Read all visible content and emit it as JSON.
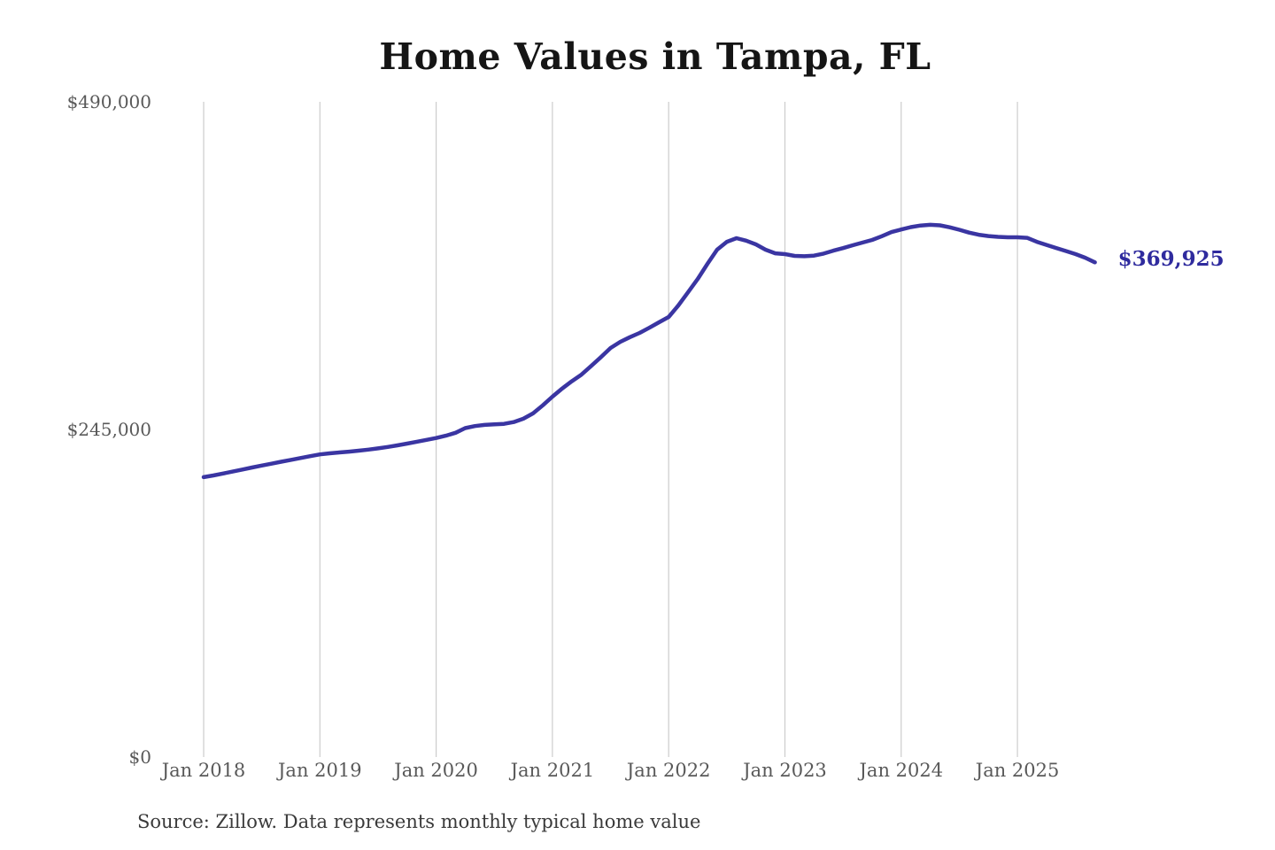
{
  "chart_data": {
    "type": "line",
    "title": "Home Values in Tampa, FL",
    "source": "Source: Zillow. Data represents monthly typical home value",
    "end_label": "$369,925",
    "latest_value": 369925,
    "x_tick_labels": [
      "Jan 2018",
      "Jan 2019",
      "Jan 2020",
      "Jan 2021",
      "Jan 2022",
      "Jan 2023",
      "Jan 2024",
      "Jan 2025"
    ],
    "y_ticks": [
      {
        "value": 0,
        "label": "$0"
      },
      {
        "value": 245000,
        "label": "$245,000"
      },
      {
        "value": 490000,
        "label": "$490,000"
      }
    ],
    "ylim": [
      0,
      490000
    ],
    "grid": "vertical-only",
    "legend": "none",
    "series": [
      {
        "name": "Monthly typical home value",
        "x_start": "Jan 2018",
        "x_interval": "month",
        "values": [
          209300,
          210600,
          212000,
          213500,
          215000,
          216500,
          218000,
          219400,
          220800,
          222200,
          223600,
          225000,
          226300,
          227100,
          227800,
          228400,
          229100,
          229900,
          230800,
          231900,
          233100,
          234400,
          235800,
          237200,
          238600,
          240300,
          242500,
          246000,
          247500,
          248400,
          248800,
          249200,
          250500,
          253000,
          257000,
          263000,
          269500,
          275500,
          281000,
          286000,
          292500,
          299000,
          305900,
          310500,
          314000,
          317200,
          321000,
          325100,
          329100,
          337700,
          347600,
          357500,
          368800,
          379400,
          385300,
          388000,
          386200,
          383400,
          379400,
          376700,
          376100,
          374800,
          374500,
          375000,
          376500,
          378700,
          380600,
          382700,
          384700,
          386700,
          389500,
          392600,
          394500,
          396300,
          397500,
          398000,
          397600,
          396200,
          394300,
          392200,
          390600,
          389600,
          389000,
          388700,
          388700,
          388300,
          385300,
          383000,
          380700,
          378400,
          376100,
          373400,
          369925
        ]
      }
    ],
    "colors": {
      "line": "#3a35a2",
      "end_label": "#2f2b9e",
      "gridline": "#cccccc",
      "axis_text": "#595959",
      "title_text": "#151515",
      "source_text": "#3a3a3a",
      "background": "#ffffff"
    }
  }
}
